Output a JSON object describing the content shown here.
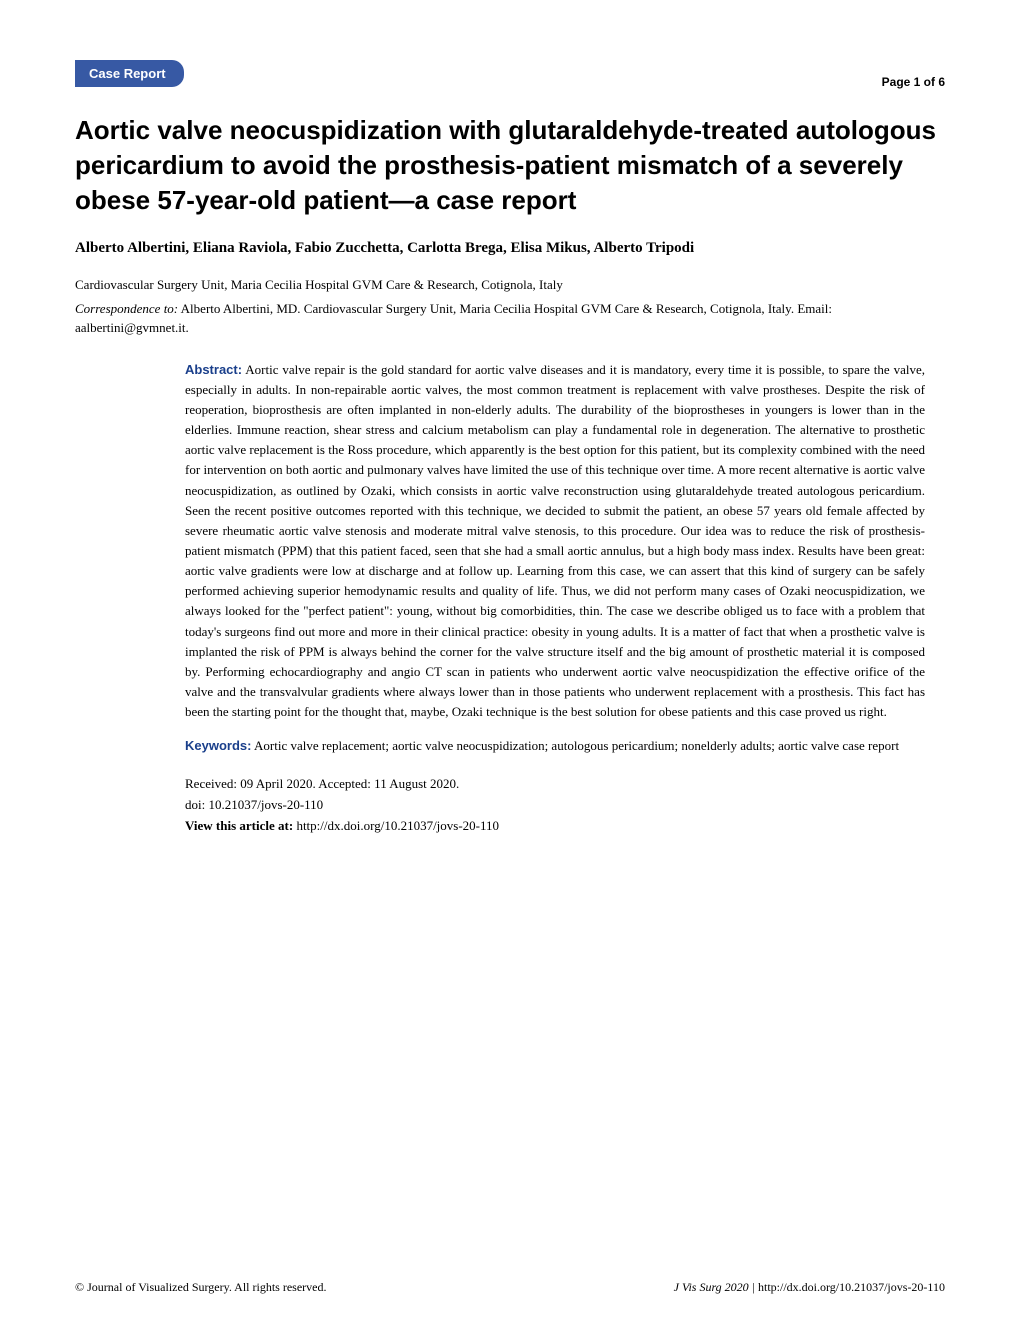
{
  "header": {
    "badge": "Case Report",
    "page_indicator": "Page 1 of 6"
  },
  "title": "Aortic valve neocuspidization with glutaraldehyde-treated autologous pericardium to avoid the prosthesis-patient mismatch of a severely obese 57-year-old patient—a case report",
  "authors": "Alberto Albertini, Eliana Raviola, Fabio Zucchetta, Carlotta Brega, Elisa Mikus, Alberto Tripodi",
  "affiliation": "Cardiovascular Surgery Unit, Maria Cecilia Hospital GVM Care & Research, Cotignola, Italy",
  "correspondence": {
    "label": "Correspondence to:",
    "text": " Alberto Albertini, MD. Cardiovascular Surgery Unit, Maria Cecilia Hospital GVM Care & Research, Cotignola, Italy. Email: aalbertini@gvmnet.it."
  },
  "abstract": {
    "label": "Abstract:",
    "text": " Aortic valve repair is the gold standard for aortic valve diseases and it is mandatory, every time it is possible, to spare the valve, especially in adults. In non-repairable aortic valves, the most common treatment is replacement with valve prostheses. Despite the risk of reoperation, bioprosthesis are often implanted in non-elderly adults. The durability of the bioprostheses in youngers is lower than in the elderlies. Immune reaction, shear stress and calcium metabolism can play a fundamental role in degeneration. The alternative to prosthetic aortic valve replacement is the Ross procedure, which apparently is the best option for this patient, but its complexity combined with the need for intervention on both aortic and pulmonary valves have limited the use of this technique over time. A more recent alternative is aortic valve neocuspidization, as outlined by Ozaki, which consists in aortic valve reconstruction using glutaraldehyde treated autologous pericardium. Seen the recent positive outcomes reported with this technique, we decided to submit the patient, an obese 57 years old female affected by severe rheumatic aortic valve stenosis and moderate mitral valve stenosis, to this procedure. Our idea was to reduce the risk of prosthesis-patient mismatch (PPM) that this patient faced, seen that she had a small aortic annulus, but a high body mass index. Results have been great: aortic valve gradients were low at discharge and at follow up. Learning from this case, we can assert that this kind of surgery can be safely performed achieving superior hemodynamic results and quality of life. Thus, we did not perform many cases of Ozaki neocuspidization, we always looked for the \"perfect patient\": young, without big comorbidities, thin. The case we describe obliged us to face with a problem that today's surgeons find out more and more in their clinical practice: obesity in young adults. It is a matter of fact that when a prosthetic valve is implanted the risk of PPM is always behind the corner for the valve structure itself and the big amount of prosthetic material it is composed by. Performing echocardiography and angio CT scan in patients who underwent aortic valve neocuspidization the effective orifice of the valve and the transvalvular gradients where always lower than in those patients who underwent replacement with a prosthesis. This fact has been the starting point for the thought that, maybe, Ozaki technique is the best solution for obese patients and this case proved us right."
  },
  "keywords": {
    "label": "Keywords:",
    "text": " Aortic valve replacement; aortic valve neocuspidization; autologous pericardium; nonelderly adults; aortic valve case report"
  },
  "meta": {
    "received_accepted": "Received: 09 April 2020. Accepted: 11 August 2020.",
    "doi": "doi: 10.21037/jovs-20-110",
    "view_label": "View this article at:",
    "view_url": " http://dx.doi.org/10.21037/jovs-20-110"
  },
  "footer": {
    "left": "© Journal of Visualized Surgery. All rights reserved.",
    "journal": "J Vis Surg",
    "year": " 2020 | ",
    "url": "http://dx.doi.org/10.21037/jovs-20-110"
  },
  "colors": {
    "badge_bg": "#3759a4",
    "section_label": "#1a3f8b",
    "text": "#000000",
    "background": "#ffffff"
  }
}
